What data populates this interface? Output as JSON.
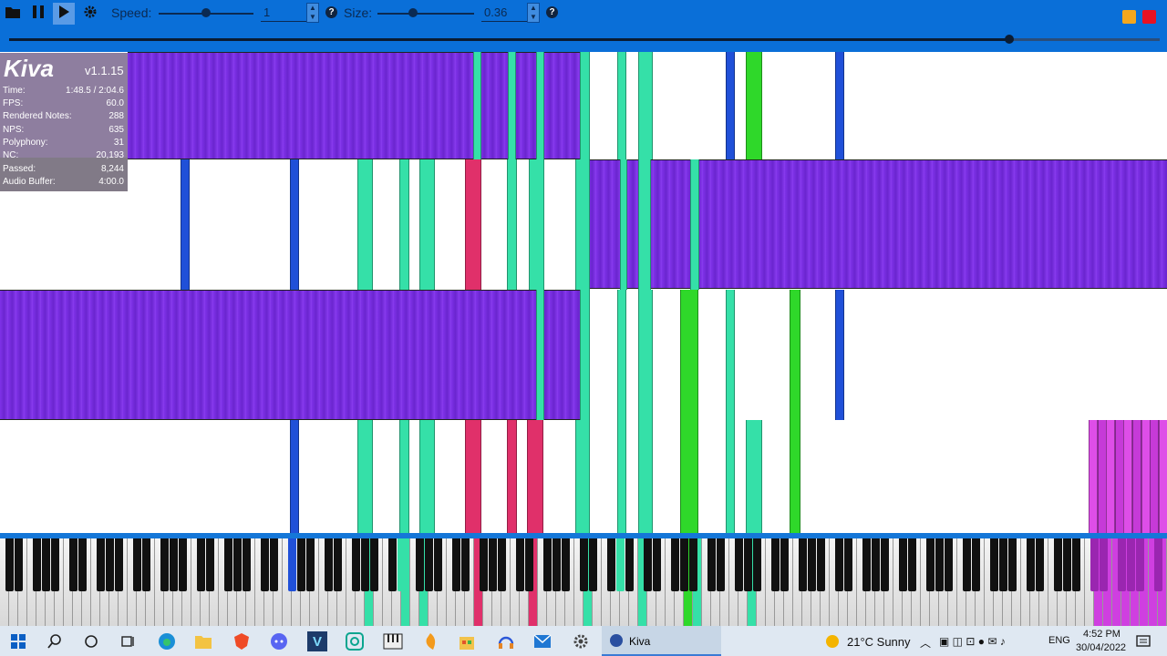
{
  "toolbar": {
    "speed_label": "Speed:",
    "speed_value": "1",
    "speed_help": "?",
    "size_label": "Size:",
    "size_value": "0.36",
    "size_help": "?",
    "icons": [
      "folder-icon",
      "pause-icon",
      "play-icon",
      "gear-icon"
    ],
    "speed_level": 0.5,
    "size_level": 0.37,
    "seek_progress": 0.87,
    "colors": {
      "bar": "#0a6fd8",
      "min": "#f4a71d",
      "close": "#e81123"
    }
  },
  "stats": {
    "title": "Kiva",
    "version": "v1.1.15",
    "rows": [
      {
        "label": "Time:",
        "value": "1:48.5 / 2:04.6"
      },
      {
        "label": "FPS:",
        "value": "60.0"
      },
      {
        "label": "Rendered Notes:",
        "value": "288"
      },
      {
        "label": "NPS:",
        "value": "635"
      },
      {
        "label": "Polyphony:",
        "value": "31"
      },
      {
        "label": "NC:",
        "value": "20,193"
      },
      {
        "label": "Passed:",
        "value": "8,244"
      },
      {
        "label": "Audio Buffer:",
        "value": "4:00.0"
      }
    ]
  },
  "colors": {
    "purple": "#7a2fe0",
    "teal": "#35e0a8",
    "blue": "#2050d8",
    "red": "#e0306a",
    "green": "#2fd82a",
    "magenta": "#d040e0"
  },
  "taskbar": {
    "apps": [
      "windows-start-icon",
      "search-icon",
      "cortana-icon",
      "task-view-icon",
      "edge-icon",
      "file-explorer-icon",
      "brave-icon",
      "discord-icon",
      "visual-studio-icon",
      "app-icon",
      "piano-app-icon",
      "fl-studio-icon",
      "store-icon",
      "headset-icon",
      "mail-icon",
      "settings-icon"
    ],
    "active_app": "Kiva",
    "weather": "21°C  Sunny",
    "lang": "ENG",
    "time": "4:52 PM",
    "date": "30/04/2022"
  }
}
